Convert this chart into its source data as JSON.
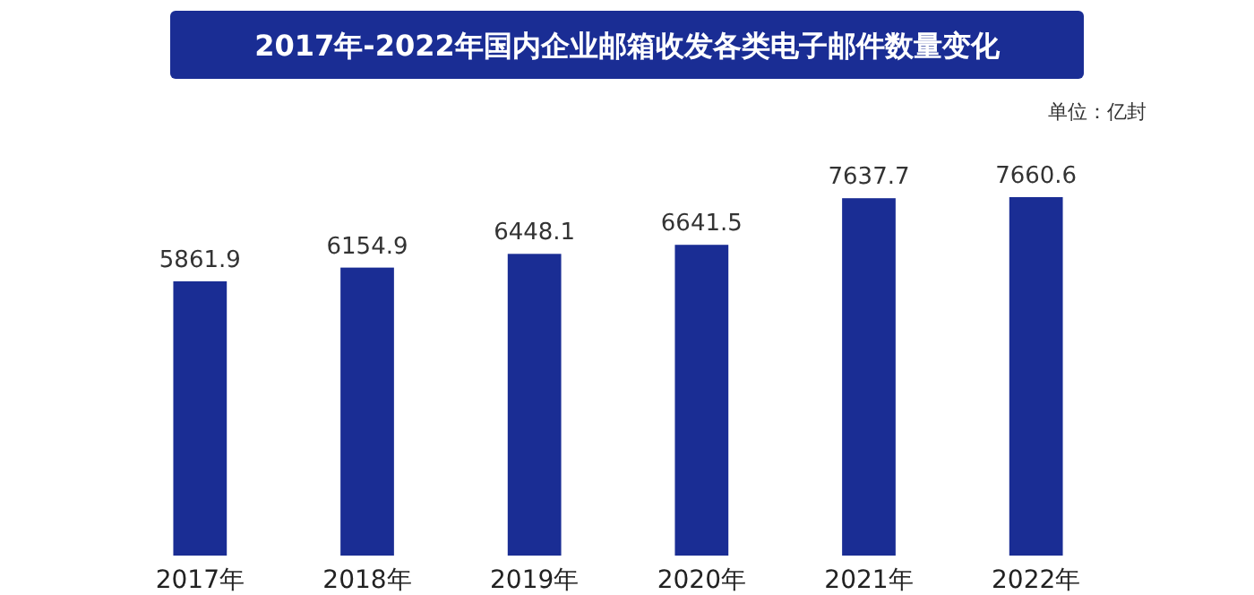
{
  "chart_data": {
    "type": "bar",
    "title": "2017年-2022年国内企业邮箱收发各类电子邮件数量变化",
    "annotations": [
      "单位：亿封"
    ],
    "categories": [
      "2017年",
      "2018年",
      "2019年",
      "2020年",
      "2021年",
      "2022年"
    ],
    "values": [
      5861.9,
      6154.9,
      6448.1,
      6641.5,
      7637.7,
      7660.6
    ],
    "color": "#1a2d94",
    "data_labels": true
  }
}
